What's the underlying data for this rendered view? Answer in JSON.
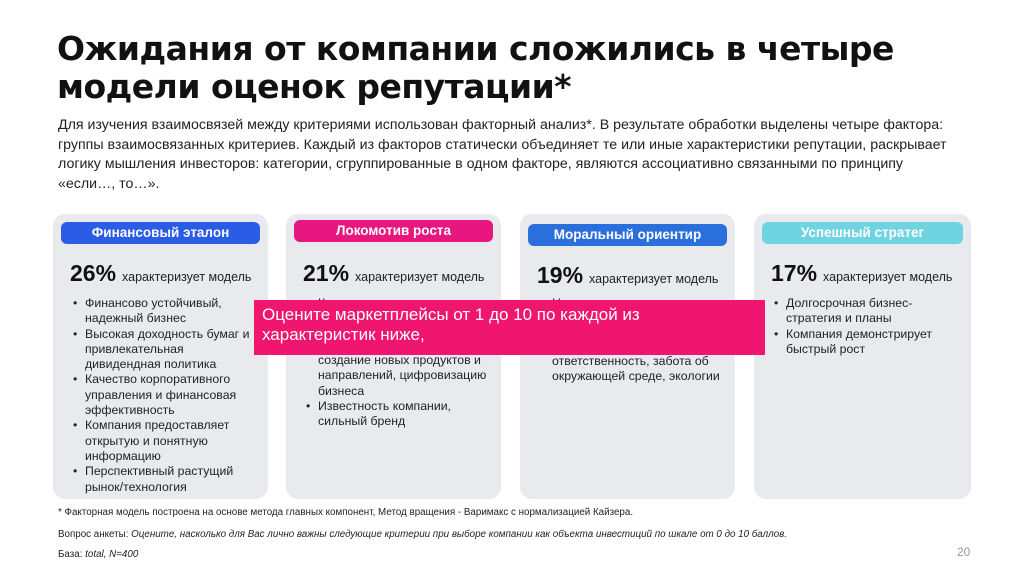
{
  "title": "Ожидания от компании сложились в четыре модели оценок репутации*",
  "intro": "Для изучения взаимосвязей между критериями использован факторный анализ*. В результате обработки выделены четыре фактора: группы взаимосвязанных критериев. Каждый из факторов статически объединяет те или иные характеристики репутации, раскрывает логику мышления инвесторов: категории, сгруппированные в одном факторе, являются ассоциативно связанными по принципу «если…, то…».",
  "cards": [
    {
      "label": "Финансовый эталон",
      "color": "#2b5ce6",
      "percent": "26%",
      "percent_text": "характеризует модель",
      "bullets": [
        "Финансово устойчивый, надежный бизнес",
        "Высокая доходность бумаг и привлекательная дивидендная политика",
        "Качество корпоративного управления и финансовая эффективность",
        "Компания предоставляет открытую и понятную информацию",
        "Перспективный растущий рынок/технология"
      ]
    },
    {
      "label": "Локомотив роста",
      "color": "#e8177f",
      "percent": "21%",
      "percent_text": "характеризует модель",
      "bullets": [
        "Компания претендует на",
        "создание новых продуктов и направлений, цифровизацию бизнеса",
        "Известность компании, сильный бренд"
      ]
    },
    {
      "label": "Моральный ориентир",
      "color": "#2a6fdc",
      "percent": "19%",
      "percent_text": "характеризует модель",
      "bullets": [
        "Ценности компании",
        "ответственность, забота об окружающей среде, экологии"
      ]
    },
    {
      "label": "Успешный стратег",
      "color": "#6fd3e0",
      "percent": "17%",
      "percent_text": "характеризует модель",
      "bullets": [
        "Долгосрочная бизнес-стратегия и планы",
        "Компания демонстрирует быстрый рост"
      ]
    }
  ],
  "overlay": "Оцените маркетплейсы от 1 до 10 по каждой из характеристик ниже,",
  "footnote": "* Факторная модель построена на основе метода главных компонент, Метод вращения - Варимакс с нормализацией Кайзера.",
  "question_label": "Вопрос анкеты:",
  "question_text": "Оцените, насколько для Вас лично важны следующие критерии при выборе компании как объекта инвестиций по шкале от 0 до 10 баллов.",
  "base_label": "База:",
  "base_text": "total, N=400",
  "page_number": "20"
}
